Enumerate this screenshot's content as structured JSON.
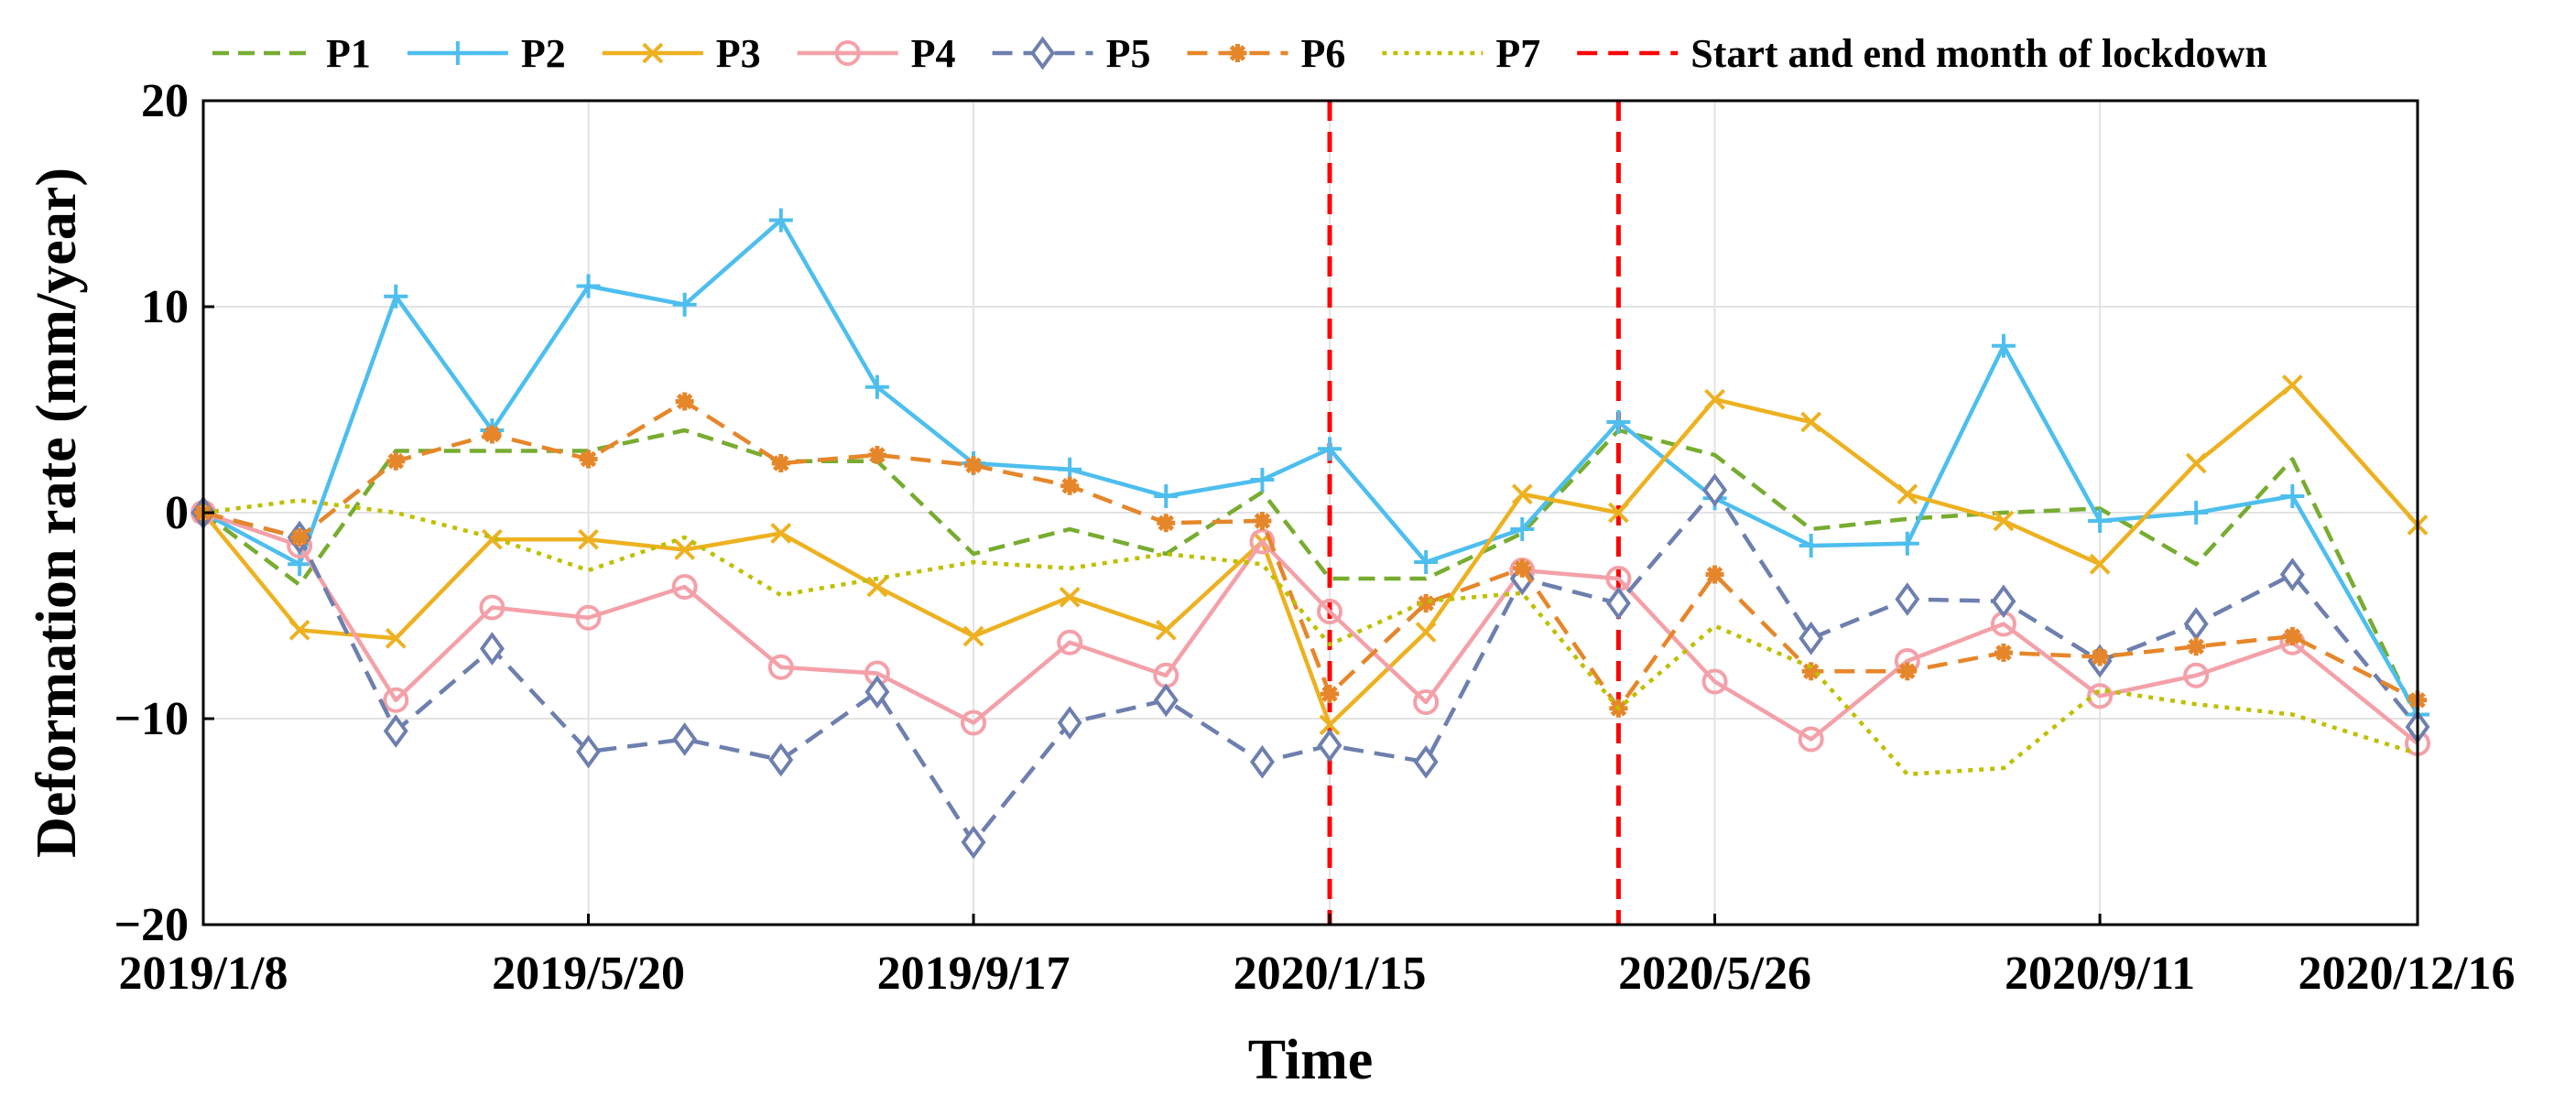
{
  "chart_data": {
    "type": "line",
    "title": "",
    "xlabel": "Time",
    "ylabel": "Deformation rate (mm/year)",
    "ylim": [
      -20,
      20
    ],
    "yticks": [
      "20",
      "10",
      "0",
      "−10",
      "−20"
    ],
    "ytick_values": [
      20,
      10,
      0,
      -10,
      -20
    ],
    "xlim": [
      0,
      23
    ],
    "xtick_labels": [
      "2019/1/8",
      "2019/5/20",
      "2019/9/17",
      "2020/1/15",
      "2020/5/26",
      "2020/9/11",
      "2020/12/16"
    ],
    "xtick_positions": [
      0,
      4,
      8,
      11.7,
      15.7,
      19.7,
      23
    ],
    "grid": true,
    "legend_position": "top",
    "lockdown": {
      "label": "Start and end month of lockdown",
      "x_start": 11.7,
      "x_end": 14.7,
      "color": "#ff0000"
    },
    "x": [
      0,
      1,
      2,
      3,
      4,
      5,
      6,
      7,
      8,
      9,
      10,
      11,
      11.7,
      12.7,
      13.7,
      14.7,
      15.7,
      16.7,
      17.7,
      18.7,
      19.7,
      20.7,
      21.7,
      23
    ],
    "series": [
      {
        "name": "P1",
        "color": "#77ac30",
        "dash": "18,10",
        "marker": "none",
        "values": [
          0,
          -3.5,
          3,
          3,
          3,
          4,
          2.5,
          2.5,
          -2,
          -0.8,
          -2,
          1,
          -3.2,
          -3.2,
          -1,
          4,
          2.8,
          -0.8,
          -0.3,
          0,
          0.2,
          -2.5,
          2.6,
          -10
        ]
      },
      {
        "name": "P2",
        "color": "#4dbeee",
        "dash": "",
        "marker": "plus",
        "values": [
          0,
          -2.5,
          10.5,
          4,
          11,
          10.1,
          14.2,
          6.1,
          2.4,
          2.1,
          0.8,
          1.6,
          3.1,
          -2.4,
          -0.8,
          4.4,
          0.7,
          -1.6,
          -1.5,
          8.1,
          -0.4,
          0,
          0.8,
          -9.8
        ]
      },
      {
        "name": "P3",
        "color": "#edb120",
        "dash": "",
        "marker": "x",
        "values": [
          0,
          -5.7,
          -6.1,
          -1.3,
          -1.3,
          -1.8,
          -1,
          -3.6,
          -6,
          -4.1,
          -5.7,
          -1.4,
          -10.3,
          -5.8,
          0.9,
          0,
          5.5,
          4.4,
          0.9,
          -0.4,
          -2.5,
          2.4,
          6.2,
          -0.6
        ]
      },
      {
        "name": "P4",
        "color": "#f4a0a8",
        "dash": "",
        "marker": "circle",
        "values": [
          0,
          -1.6,
          -9.1,
          -4.6,
          -5.1,
          -3.6,
          -7.5,
          -7.8,
          -10.2,
          -6.3,
          -7.9,
          -1.4,
          -4.8,
          -9.2,
          -2.8,
          -3.2,
          -8.2,
          -11,
          -7.2,
          -5.4,
          -8.9,
          -7.9,
          -6.3,
          -11.2
        ]
      },
      {
        "name": "P5",
        "color": "#6d7fae",
        "dash": "22,12",
        "marker": "diamond",
        "values": [
          0,
          -1.2,
          -10.6,
          -6.6,
          -11.6,
          -11,
          -12,
          -8.7,
          -16,
          -10.2,
          -9.1,
          -12.1,
          -11.3,
          -12.1,
          -3.2,
          -4.4,
          1.1,
          -6.1,
          -4.2,
          -4.3,
          -7.2,
          -5.4,
          -3,
          -10.4
        ]
      },
      {
        "name": "P6",
        "color": "#e6862a",
        "dash": "22,12",
        "marker": "star",
        "values": [
          0,
          -1.2,
          2.5,
          3.8,
          2.6,
          5.4,
          2.4,
          2.8,
          2.3,
          1.3,
          -0.5,
          -0.4,
          -8.8,
          -4.4,
          -2.7,
          -9.5,
          -3,
          -7.7,
          -7.7,
          -6.8,
          -7,
          -6.5,
          -6,
          -9.1
        ]
      },
      {
        "name": "P7",
        "color": "#bfbf00",
        "dash": "5,7",
        "marker": "none",
        "values": [
          0,
          0.6,
          0,
          -1.2,
          -2.8,
          -1.2,
          -4,
          -3.2,
          -2.4,
          -2.7,
          -2,
          -2.5,
          -6.4,
          -4.3,
          -3.9,
          -9.5,
          -5.5,
          -7.5,
          -12.7,
          -12.4,
          -8.6,
          -9.3,
          -9.8,
          -11.7
        ]
      }
    ]
  }
}
